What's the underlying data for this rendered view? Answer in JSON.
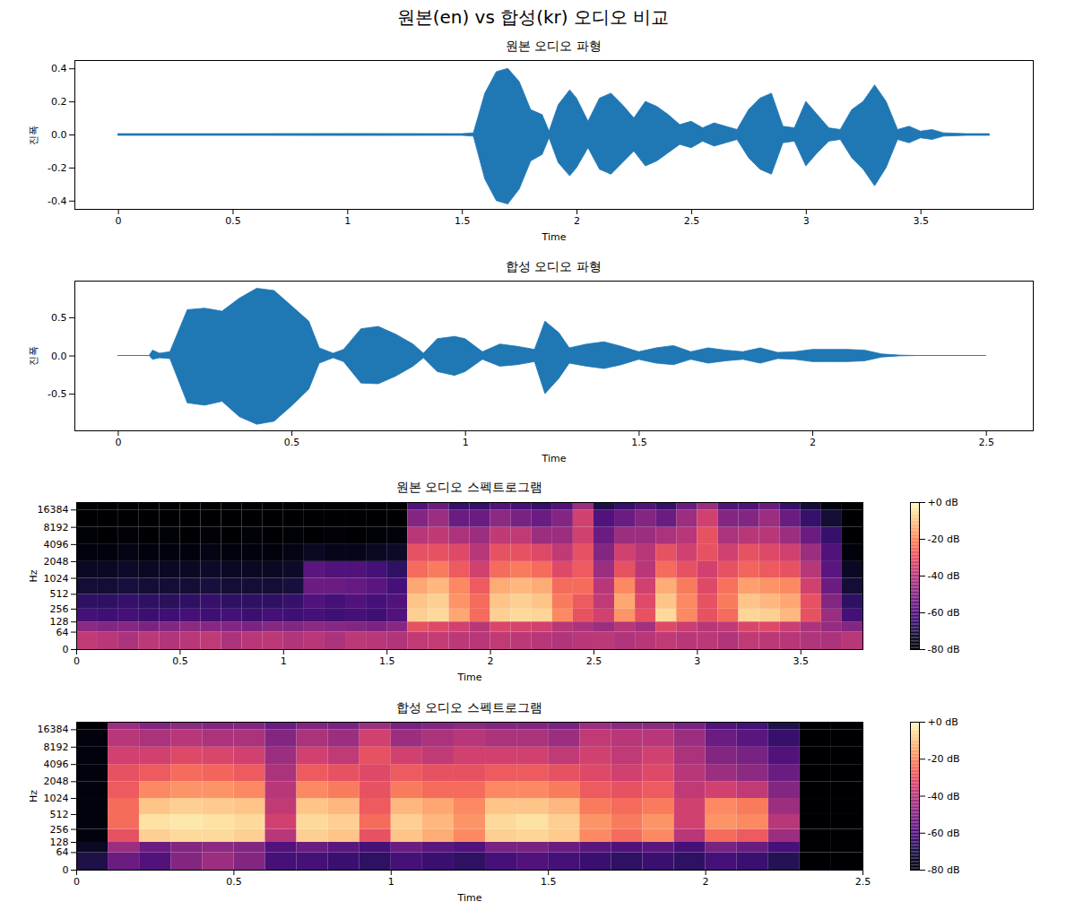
{
  "title": "원본(en) vs 합성(kr) 오디오 비교",
  "chart_data": [
    {
      "type": "area",
      "title": "원본 오디오 파형",
      "x_label": "Time",
      "y_label": "진폭",
      "color": "#1f77b4",
      "xlim": [
        -0.19,
        3.99
      ],
      "xticks": [
        0,
        0.5,
        1,
        1.5,
        2,
        2.5,
        3,
        3.5
      ],
      "ylim": [
        -0.45,
        0.45
      ],
      "yticks": [
        -0.4,
        -0.2,
        {
          "value": 0,
          "label": "0.0"
        },
        0.2,
        0.4
      ],
      "x": [
        0,
        0.5,
        1.0,
        1.5,
        1.55,
        1.6,
        1.65,
        1.7,
        1.75,
        1.8,
        1.85,
        1.88,
        1.92,
        1.97,
        2.0,
        2.05,
        2.1,
        2.15,
        2.2,
        2.25,
        2.3,
        2.35,
        2.4,
        2.45,
        2.5,
        2.55,
        2.6,
        2.65,
        2.7,
        2.75,
        2.8,
        2.85,
        2.9,
        2.95,
        3.0,
        3.05,
        3.1,
        3.15,
        3.2,
        3.25,
        3.3,
        3.35,
        3.4,
        3.45,
        3.5,
        3.55,
        3.6,
        3.7,
        3.8
      ],
      "upper": [
        0.005,
        0.005,
        0.006,
        0.005,
        0.01,
        0.25,
        0.38,
        0.4,
        0.32,
        0.15,
        0.12,
        0.02,
        0.18,
        0.27,
        0.22,
        0.08,
        0.22,
        0.25,
        0.18,
        0.1,
        0.2,
        0.17,
        0.12,
        0.06,
        0.08,
        0.04,
        0.07,
        0.05,
        0.03,
        0.15,
        0.22,
        0.25,
        0.05,
        0.04,
        0.2,
        0.12,
        0.04,
        0.03,
        0.15,
        0.2,
        0.3,
        0.2,
        0.03,
        0.05,
        0.02,
        0.03,
        0.01,
        0.005,
        0.005
      ],
      "lower": [
        -0.005,
        -0.005,
        -0.006,
        -0.005,
        -0.01,
        -0.27,
        -0.4,
        -0.42,
        -0.33,
        -0.16,
        -0.12,
        -0.02,
        -0.17,
        -0.25,
        -0.2,
        -0.08,
        -0.21,
        -0.24,
        -0.17,
        -0.1,
        -0.19,
        -0.16,
        -0.11,
        -0.06,
        -0.08,
        -0.04,
        -0.07,
        -0.05,
        -0.03,
        -0.14,
        -0.21,
        -0.24,
        -0.05,
        -0.04,
        -0.19,
        -0.11,
        -0.04,
        -0.03,
        -0.14,
        -0.21,
        -0.31,
        -0.2,
        -0.03,
        -0.05,
        -0.02,
        -0.03,
        -0.01,
        -0.005,
        -0.005
      ]
    },
    {
      "type": "area",
      "title": "합성 오디오 파형",
      "x_label": "Time",
      "y_label": "진폭",
      "color": "#1f77b4",
      "xlim": [
        -0.125,
        2.635
      ],
      "xticks": [
        0,
        0.5,
        1,
        1.5,
        2,
        2.5
      ],
      "ylim": [
        -0.98,
        0.98
      ],
      "yticks": [
        -0.5,
        {
          "value": 0,
          "label": "0.0"
        },
        0.5
      ],
      "x": [
        0,
        0.09,
        0.1,
        0.12,
        0.15,
        0.2,
        0.25,
        0.3,
        0.35,
        0.4,
        0.45,
        0.5,
        0.55,
        0.58,
        0.62,
        0.65,
        0.7,
        0.75,
        0.8,
        0.85,
        0.88,
        0.92,
        0.97,
        1.0,
        1.05,
        1.1,
        1.15,
        1.2,
        1.23,
        1.27,
        1.3,
        1.35,
        1.4,
        1.45,
        1.5,
        1.55,
        1.6,
        1.65,
        1.7,
        1.75,
        1.8,
        1.85,
        1.9,
        1.95,
        2.0,
        2.05,
        2.1,
        2.15,
        2.2,
        2.25,
        2.3,
        2.5
      ],
      "upper": [
        0,
        0,
        0.07,
        0.03,
        0.05,
        0.6,
        0.62,
        0.58,
        0.75,
        0.88,
        0.85,
        0.65,
        0.45,
        0.1,
        0.03,
        0.08,
        0.35,
        0.38,
        0.28,
        0.15,
        0.03,
        0.22,
        0.25,
        0.22,
        0.05,
        0.15,
        0.12,
        0.08,
        0.45,
        0.3,
        0.1,
        0.15,
        0.18,
        0.12,
        0.05,
        0.1,
        0.13,
        0.05,
        0.1,
        0.07,
        0.05,
        0.1,
        0.04,
        0.05,
        0.08,
        0.08,
        0.08,
        0.07,
        0.02,
        0.005,
        0,
        0
      ],
      "lower": [
        0,
        0,
        -0.05,
        -0.03,
        -0.04,
        -0.62,
        -0.65,
        -0.6,
        -0.8,
        -0.9,
        -0.86,
        -0.66,
        -0.44,
        -0.1,
        -0.03,
        -0.08,
        -0.36,
        -0.37,
        -0.27,
        -0.14,
        -0.03,
        -0.21,
        -0.26,
        -0.21,
        -0.05,
        -0.14,
        -0.12,
        -0.08,
        -0.5,
        -0.3,
        -0.1,
        -0.14,
        -0.17,
        -0.12,
        -0.05,
        -0.1,
        -0.12,
        -0.05,
        -0.1,
        -0.07,
        -0.05,
        -0.1,
        -0.04,
        -0.05,
        -0.08,
        -0.08,
        -0.08,
        -0.07,
        -0.02,
        -0.005,
        0,
        0
      ]
    },
    {
      "type": "heatmap",
      "title": "원본 오디오 스펙트로그램",
      "x_label": "Time",
      "y_label": "Hz",
      "log": "y",
      "color": "magma",
      "xlim": [
        0,
        3.8
      ],
      "xticks": [
        0,
        0.5,
        1,
        1.5,
        2,
        2.5,
        3,
        3.5
      ],
      "ylim": [
        0,
        22050
      ],
      "yticks": [
        0,
        64,
        128,
        256,
        512,
        1024,
        2048,
        4096,
        8192,
        16384
      ],
      "color_range": [
        -80,
        0
      ],
      "color_ticks": [
        {
          "value": 0,
          "label": "+0 dB"
        },
        {
          "value": -20,
          "label": "-20 dB"
        },
        {
          "value": -40,
          "label": "-40 dB"
        },
        {
          "value": -60,
          "label": "-60 dB"
        },
        {
          "value": -80,
          "label": "-80 dB"
        }
      ],
      "time_edges": [
        0,
        0.1,
        0.2,
        0.3,
        0.4,
        0.5,
        0.6,
        0.7,
        0.8,
        0.9,
        1.0,
        1.1,
        1.2,
        1.3,
        1.4,
        1.5,
        1.6,
        1.7,
        1.8,
        1.9,
        2.0,
        2.1,
        2.2,
        2.3,
        2.4,
        2.5,
        2.6,
        2.7,
        2.8,
        2.9,
        3.0,
        3.1,
        3.2,
        3.3,
        3.4,
        3.5,
        3.6,
        3.7,
        3.8
      ],
      "freq_edges": [
        0,
        64,
        128,
        256,
        512,
        1024,
        2048,
        4096,
        8192,
        16384,
        22050
      ],
      "cells": [
        [
          -38,
          -40,
          -42,
          -39,
          -41,
          -40,
          -38,
          -42,
          -40,
          -39,
          -41,
          -40,
          -42,
          -39,
          -40,
          -41,
          -38,
          -37,
          -39,
          -40,
          -38,
          -39,
          -40,
          -41,
          -40,
          -39,
          -41,
          -40,
          -38,
          -40,
          -39,
          -41,
          -38,
          -39,
          -40,
          -41,
          -42,
          -40
        ],
        [
          -48,
          -50,
          -49,
          -51,
          -50,
          -48,
          -49,
          -50,
          -51,
          -49,
          -50,
          -48,
          -49,
          -50,
          -51,
          -49,
          -30,
          -32,
          -35,
          -40,
          -33,
          -34,
          -35,
          -40,
          -42,
          -45,
          -40,
          -44,
          -32,
          -36,
          -40,
          -38,
          -33,
          -32,
          -36,
          -42,
          -46,
          -50
        ],
        [
          -62,
          -63,
          -62,
          -64,
          -63,
          -62,
          -63,
          -62,
          -64,
          -62,
          -63,
          -62,
          -63,
          -62,
          -63,
          -60,
          -8,
          -6,
          -15,
          -25,
          -8,
          -6,
          -7,
          -20,
          -30,
          -35,
          -18,
          -30,
          -6,
          -20,
          -30,
          -25,
          -7,
          -8,
          -12,
          -30,
          -45,
          -62
        ],
        [
          -66,
          -66,
          -65,
          -66,
          -67,
          -66,
          -65,
          -66,
          -66,
          -66,
          -65,
          -60,
          -62,
          -60,
          -62,
          -60,
          -10,
          -8,
          -18,
          -25,
          -10,
          -8,
          -10,
          -22,
          -28,
          -38,
          -15,
          -32,
          -10,
          -20,
          -30,
          -22,
          -10,
          -12,
          -15,
          -30,
          -50,
          -66
        ],
        [
          -72,
          -72,
          -71,
          -72,
          -72,
          -72,
          -71,
          -72,
          -72,
          -72,
          -71,
          -55,
          -55,
          -56,
          -58,
          -62,
          -15,
          -12,
          -20,
          -28,
          -14,
          -12,
          -14,
          -25,
          -25,
          -40,
          -20,
          -35,
          -14,
          -22,
          -32,
          -24,
          -16,
          -18,
          -20,
          -35,
          -55,
          -72
        ],
        [
          -75,
          -75,
          -74,
          -75,
          -75,
          -75,
          -74,
          -75,
          -75,
          -75,
          -74,
          -58,
          -60,
          -60,
          -62,
          -66,
          -25,
          -22,
          -28,
          -35,
          -25,
          -22,
          -25,
          -32,
          -28,
          -45,
          -30,
          -40,
          -25,
          -30,
          -35,
          -30,
          -26,
          -28,
          -30,
          -40,
          -58,
          -75
        ],
        [
          -78,
          -78,
          -77,
          -78,
          -78,
          -78,
          -77,
          -78,
          -78,
          -78,
          -77,
          -75,
          -76,
          -76,
          -75,
          -74,
          -30,
          -30,
          -32,
          -40,
          -30,
          -30,
          -32,
          -38,
          -30,
          -50,
          -35,
          -40,
          -30,
          -35,
          -30,
          -35,
          -30,
          -32,
          -35,
          -45,
          -60,
          -78
        ],
        [
          -79,
          -80,
          -79,
          -80,
          -79,
          -80,
          -79,
          -80,
          -79,
          -80,
          -79,
          -80,
          -79,
          -80,
          -79,
          -78,
          -40,
          -38,
          -42,
          -45,
          -38,
          -38,
          -45,
          -45,
          -35,
          -55,
          -45,
          -45,
          -42,
          -40,
          -30,
          -42,
          -40,
          -40,
          -45,
          -55,
          -65,
          -80
        ],
        [
          -80,
          -80,
          -80,
          -80,
          -80,
          -80,
          -80,
          -80,
          -80,
          -80,
          -80,
          -80,
          -80,
          -80,
          -80,
          -80,
          -50,
          -45,
          -55,
          -55,
          -48,
          -52,
          -55,
          -50,
          -35,
          -60,
          -55,
          -50,
          -55,
          -45,
          -35,
          -50,
          -50,
          -45,
          -55,
          -65,
          -72,
          -80
        ],
        [
          -80,
          -80,
          -80,
          -80,
          -80,
          -80,
          -80,
          -80,
          -80,
          -80,
          -80,
          -80,
          -80,
          -80,
          -80,
          -80,
          -60,
          -55,
          -65,
          -65,
          -60,
          -62,
          -65,
          -60,
          -45,
          -70,
          -65,
          -60,
          -65,
          -55,
          -45,
          -60,
          -60,
          -55,
          -65,
          -72,
          -78,
          -80
        ]
      ]
    },
    {
      "type": "heatmap",
      "title": "합성 오디오 스펙트로그램",
      "x_label": "Time",
      "y_label": "Hz",
      "log": "y",
      "color": "magma",
      "xlim": [
        0,
        2.5
      ],
      "xticks": [
        0,
        0.5,
        1,
        1.5,
        2,
        2.5
      ],
      "ylim": [
        0,
        22050
      ],
      "yticks": [
        0,
        64,
        128,
        256,
        512,
        1024,
        2048,
        4096,
        8192,
        16384
      ],
      "color_range": [
        -80,
        0
      ],
      "color_ticks": [
        {
          "value": 0,
          "label": "+0 dB"
        },
        {
          "value": -20,
          "label": "-20 dB"
        },
        {
          "value": -40,
          "label": "-40 dB"
        },
        {
          "value": -60,
          "label": "-60 dB"
        },
        {
          "value": -80,
          "label": "-80 dB"
        }
      ],
      "time_edges": [
        0,
        0.1,
        0.2,
        0.3,
        0.4,
        0.5,
        0.6,
        0.7,
        0.8,
        0.9,
        1.0,
        1.1,
        1.2,
        1.3,
        1.4,
        1.5,
        1.6,
        1.7,
        1.8,
        1.9,
        2.0,
        2.1,
        2.2,
        2.3,
        2.4,
        2.5
      ],
      "freq_edges": [
        0,
        64,
        128,
        256,
        512,
        1024,
        2048,
        4096,
        8192,
        16384,
        22050
      ],
      "cells": [
        [
          -70,
          -55,
          -60,
          -50,
          -45,
          -50,
          -62,
          -62,
          -64,
          -66,
          -62,
          -64,
          -66,
          -62,
          -60,
          -62,
          -64,
          -66,
          -64,
          -66,
          -62,
          -64,
          -68,
          -80,
          -80
        ],
        [
          -75,
          -45,
          -55,
          -50,
          -48,
          -50,
          -60,
          -55,
          -58,
          -62,
          -55,
          -58,
          -60,
          -52,
          -52,
          -55,
          -58,
          -60,
          -58,
          -62,
          -52,
          -55,
          -62,
          -80,
          -80
        ],
        [
          -78,
          -30,
          -8,
          -6,
          -6,
          -8,
          -40,
          -8,
          -10,
          -30,
          -10,
          -14,
          -20,
          -8,
          -7,
          -9,
          -20,
          -25,
          -20,
          -40,
          -25,
          -28,
          -45,
          -80,
          -80
        ],
        [
          -78,
          -25,
          -5,
          -4,
          -5,
          -6,
          -35,
          -6,
          -8,
          -25,
          -8,
          -12,
          -18,
          -6,
          -5,
          -8,
          -18,
          -22,
          -18,
          -35,
          -18,
          -20,
          -40,
          -80,
          -80
        ],
        [
          -78,
          -25,
          -10,
          -8,
          -9,
          -10,
          -38,
          -10,
          -12,
          -28,
          -12,
          -15,
          -20,
          -10,
          -10,
          -12,
          -22,
          -25,
          -22,
          -35,
          -20,
          -22,
          -45,
          -80,
          -80
        ],
        [
          -78,
          -28,
          -20,
          -18,
          -18,
          -20,
          -40,
          -20,
          -22,
          -30,
          -22,
          -25,
          -25,
          -20,
          -20,
          -22,
          -28,
          -30,
          -28,
          -38,
          -35,
          -38,
          -50,
          -80,
          -80
        ],
        [
          -78,
          -30,
          -28,
          -25,
          -26,
          -28,
          -42,
          -28,
          -30,
          -32,
          -28,
          -30,
          -30,
          -28,
          -28,
          -30,
          -32,
          -35,
          -32,
          -40,
          -45,
          -48,
          -55,
          -80,
          -80
        ],
        [
          -78,
          -35,
          -35,
          -32,
          -33,
          -35,
          -45,
          -35,
          -38,
          -30,
          -35,
          -38,
          -35,
          -35,
          -35,
          -38,
          -35,
          -38,
          -35,
          -42,
          -50,
          -52,
          -60,
          -80,
          -80
        ],
        [
          -78,
          -40,
          -42,
          -40,
          -42,
          -42,
          -50,
          -42,
          -45,
          -35,
          -45,
          -42,
          -40,
          -42,
          -42,
          -45,
          -38,
          -40,
          -40,
          -45,
          -55,
          -58,
          -65,
          -80,
          -80
        ],
        [
          -80,
          -45,
          -50,
          -48,
          -50,
          -50,
          -55,
          -50,
          -52,
          -45,
          -52,
          -50,
          -48,
          -50,
          -50,
          -52,
          -45,
          -48,
          -48,
          -52,
          -60,
          -62,
          -70,
          -80,
          -80
        ]
      ]
    }
  ]
}
